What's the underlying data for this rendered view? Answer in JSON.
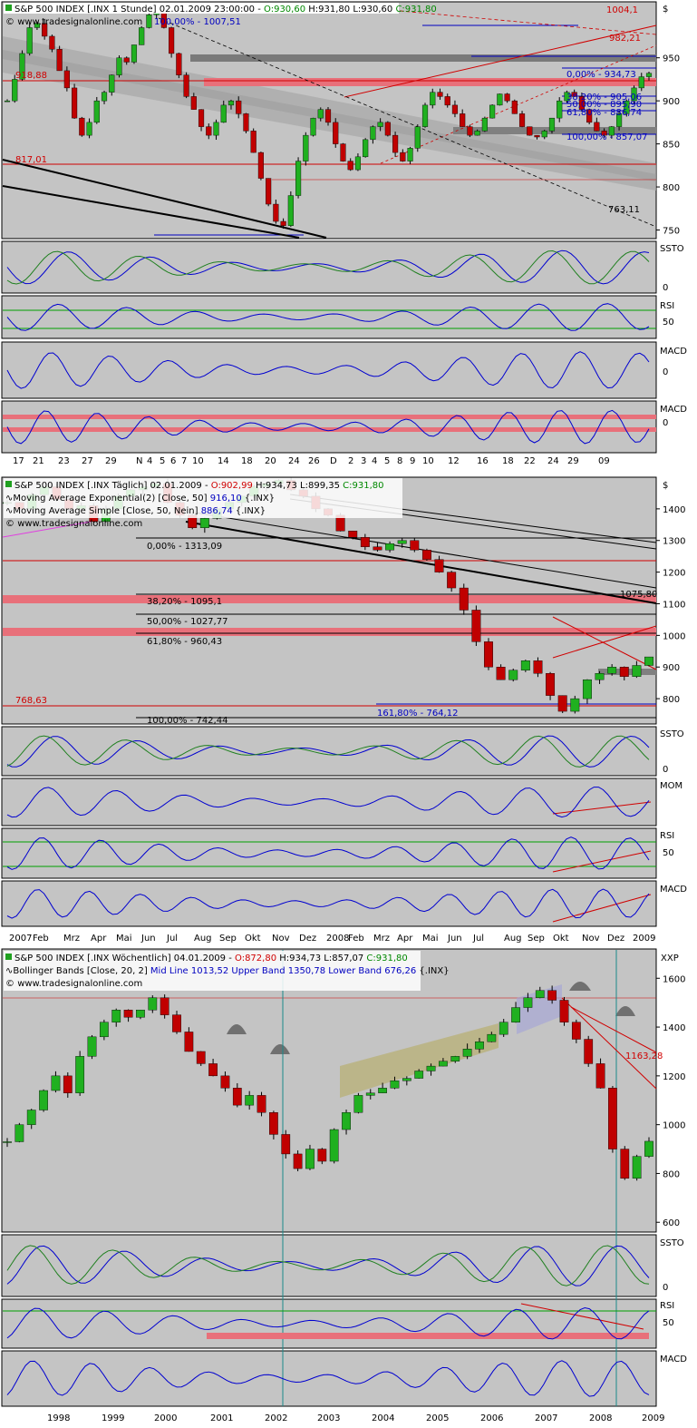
{
  "chart_data": [
    {
      "type": "line",
      "panel_label": "hourly",
      "header": {
        "prefix": "S&P 500 INDEX [.INX  1 Stunde] 02.01.2009 23:00:00 - ",
        "open": "O:930,60",
        "hl": " H:931,80 L:930,60 ",
        "close": "C:931,80"
      },
      "watermark": "www.tradesignalonline.com",
      "currency": "$",
      "y_ticks": [
        "950",
        "900",
        "850",
        "800",
        "750"
      ],
      "x_ticks": [
        "17",
        "21",
        "23",
        "27",
        "29",
        "N",
        "4",
        "5",
        "6",
        "7",
        "10",
        "14",
        "18",
        "20",
        "24",
        "26",
        "D",
        "2",
        "3",
        "4",
        "5",
        "8",
        "9",
        "10",
        "12",
        "16",
        "18",
        "22",
        "24",
        "29",
        "09"
      ],
      "ylim": [
        740,
        1015
      ],
      "price_labels": {
        "p1004": "1004,1",
        "p982": "982,21",
        "p918": "918,88",
        "p817": "817,01",
        "p763": "763,11",
        "p1007": "100,00% - 1007,51",
        "fib0": "0,00% - 934,73",
        "fib382": "38,20% - 905,06",
        "fib50": "50,00% - 895,90",
        "fib618": "61,80% - 886,74",
        "fib100": "100,00% - 857,07"
      },
      "indicators": [
        "SSTO",
        "RSI",
        "MACD",
        "MACD"
      ],
      "indicator_ticks": [
        "0",
        "50",
        "0",
        "0"
      ],
      "close": [
        900,
        925,
        955,
        985,
        990,
        975,
        960,
        935,
        915,
        880,
        860,
        875,
        900,
        910,
        930,
        950,
        945,
        965,
        985,
        1000,
        1005,
        985,
        955,
        930,
        905,
        890,
        870,
        860,
        875,
        895,
        900,
        885,
        865,
        840,
        810,
        780,
        760,
        755,
        790,
        830,
        860,
        880,
        890,
        875,
        850,
        830,
        820,
        835,
        855,
        870,
        875,
        860,
        840,
        830,
        845,
        870,
        895,
        910,
        905,
        895,
        885,
        870,
        860,
        865,
        880,
        895,
        908,
        900,
        885,
        870,
        860,
        858,
        865,
        880,
        900,
        910,
        905,
        890,
        875,
        865,
        860,
        870,
        885,
        900,
        915,
        928,
        932
      ]
    },
    {
      "type": "line",
      "panel_label": "daily",
      "header": {
        "prefix": "S&P 500 INDEX [.INX  Täglich] 02.01.2009 - ",
        "open": "O:902,99",
        "hl": " H:934,73 L:899,35 ",
        "close": "C:931,80"
      },
      "legend": [
        {
          "prefix": "Moving Average Exponential(2) [Close, 50] ",
          "value": "916,10",
          "suffix": " {.INX}"
        },
        {
          "prefix": "Moving Average Simple [Close, 50, Nein] ",
          "value": "886,74",
          "suffix": " {.INX}"
        }
      ],
      "watermark": "www.tradesignalonline.com",
      "currency": "$",
      "y_ticks": [
        "1400",
        "1300",
        "1200",
        "1100",
        "1000",
        "900",
        "800"
      ],
      "x_ticks": [
        "2007",
        "Feb",
        "Mrz",
        "Apr",
        "Mai",
        "Jun",
        "Jul",
        "Aug",
        "Sep",
        "Okt",
        "Nov",
        "Dez",
        "2008",
        "Feb",
        "Mrz",
        "Apr",
        "Mai",
        "Jun",
        "Jul",
        "Aug",
        "Sep",
        "Okt",
        "Nov",
        "Dez",
        "2009"
      ],
      "ylim": [
        720,
        1500
      ],
      "price_labels": {
        "fib0": "0,00% - 1313,09",
        "fib382": "38,20% - 1095,1",
        "fib50": "50,00% - 1027,77",
        "fib618": "61,80% - 960,43",
        "fib100": "100,00% - 742,44",
        "fib1618": "161,80% - 764,12",
        "p768": "768,63",
        "p1075": "1075,80"
      },
      "indicators": [
        "SSTO",
        "MOM",
        "RSI",
        "MACD"
      ],
      "indicator_ticks": [
        "0",
        "",
        "50",
        ""
      ],
      "close": [
        1420,
        1400,
        1445,
        1470,
        1430,
        1400,
        1410,
        1360,
        1400,
        1440,
        1460,
        1470,
        1480,
        1420,
        1380,
        1340,
        1370,
        1400,
        1420,
        1440,
        1470,
        1480,
        1490,
        1460,
        1440,
        1400,
        1380,
        1330,
        1310,
        1280,
        1270,
        1290,
        1300,
        1270,
        1240,
        1200,
        1150,
        1080,
        980,
        900,
        860,
        890,
        920,
        880,
        810,
        760,
        800,
        860,
        880,
        900,
        870,
        905,
        932
      ]
    },
    {
      "type": "line",
      "panel_label": "weekly",
      "header": {
        "prefix": "S&P 500 INDEX [.INX  Wöchentlich] 04.01.2009 - ",
        "open": "O:872,80",
        "hl": " H:934,73 L:857,07 ",
        "close": "C:931,80"
      },
      "legend": [
        {
          "prefix": "Bollinger Bands [Close, 20, 2] ",
          "value": "Mid Line 1013,52 Upper Band 1350,78 Lower Band 676,26",
          "suffix": " {.INX}"
        }
      ],
      "watermark": "www.tradesignalonline.com",
      "currency": "XXP",
      "y_ticks": [
        "1600",
        "1400",
        "1200",
        "1000",
        "800",
        "600"
      ],
      "x_ticks": [
        "1998",
        "1999",
        "2000",
        "2001",
        "2002",
        "2003",
        "2004",
        "2005",
        "2006",
        "2007",
        "2008",
        "2009"
      ],
      "ylim": [
        560,
        1720
      ],
      "price_labels": {
        "p1163": "1163,28"
      },
      "indicators": [
        "SSTO",
        "RSI",
        "MACD"
      ],
      "indicator_ticks": [
        "0",
        "50",
        ""
      ],
      "close": [
        930,
        1000,
        1060,
        1140,
        1200,
        1130,
        1280,
        1360,
        1420,
        1470,
        1440,
        1470,
        1520,
        1450,
        1380,
        1300,
        1250,
        1200,
        1150,
        1080,
        1120,
        1050,
        960,
        880,
        820,
        900,
        850,
        980,
        1050,
        1120,
        1130,
        1150,
        1180,
        1190,
        1220,
        1240,
        1260,
        1280,
        1310,
        1340,
        1370,
        1420,
        1480,
        1520,
        1550,
        1510,
        1420,
        1350,
        1250,
        1150,
        900,
        780,
        870,
        932
      ]
    }
  ]
}
